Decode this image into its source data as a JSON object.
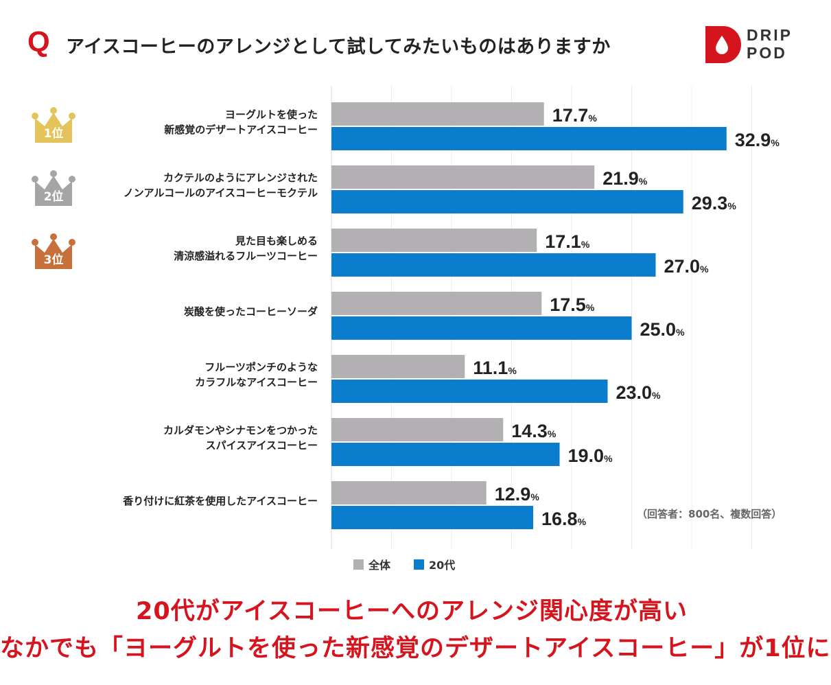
{
  "header": {
    "q_mark": "Q",
    "question": "アイスコーヒーのアレンジとして試してみたいものはありますか"
  },
  "brand": {
    "line1": "DRIP",
    "line2": "POD",
    "color": "#d6141e"
  },
  "colors": {
    "all": "#b3b0b3",
    "twenties": "#0a7dcc",
    "accent": "#d6141e",
    "rank1": "#e4c35a",
    "rank2": "#a7a4a8",
    "rank3": "#c8703c"
  },
  "rank_badges": [
    {
      "label": "1位",
      "color": "#e4c35a",
      "icon": "crown-icon"
    },
    {
      "label": "2位",
      "color": "#a7a4a8",
      "icon": "crown-icon"
    },
    {
      "label": "3位",
      "color": "#c8703c",
      "icon": "crown-icon"
    }
  ],
  "chart_data": {
    "type": "bar",
    "orientation": "horizontal",
    "categories": [
      [
        "ヨーグルトを使った",
        "新感覚のデザートアイスコーヒー"
      ],
      [
        "カクテルのようにアレンジされた",
        "ノンアルコールのアイスコーヒーモクテル"
      ],
      [
        "見た目も楽しめる",
        "清涼感溢れるフルーツコーヒー"
      ],
      [
        "炭酸を使ったコーヒーソーダ"
      ],
      [
        "フルーツポンチのような",
        "カラフルなアイスコーヒー"
      ],
      [
        "カルダモンやシナモンをつかった",
        "スパイスアイスコーヒー"
      ],
      [
        "香り付けに紅茶を使用したアイスコーヒー"
      ]
    ],
    "series": [
      {
        "name": "全体",
        "color": "#b3b0b3",
        "values": [
          17.7,
          21.9,
          17.1,
          17.5,
          11.1,
          14.3,
          12.9
        ]
      },
      {
        "name": "20代",
        "color": "#0a7dcc",
        "values": [
          32.9,
          29.3,
          27.0,
          25.0,
          23.0,
          19.0,
          16.8
        ]
      }
    ],
    "value_suffix": "%",
    "xlim": [
      0,
      35
    ],
    "grid": true,
    "legend": "bottom"
  },
  "note": "（回答者：800名、複数回答）",
  "headline": {
    "line1": "20代がアイスコーヒーへのアレンジ関心度が高い",
    "line2": "なかでも「ヨーグルトを使った新感覚のデザートアイスコーヒー」が1位に"
  }
}
